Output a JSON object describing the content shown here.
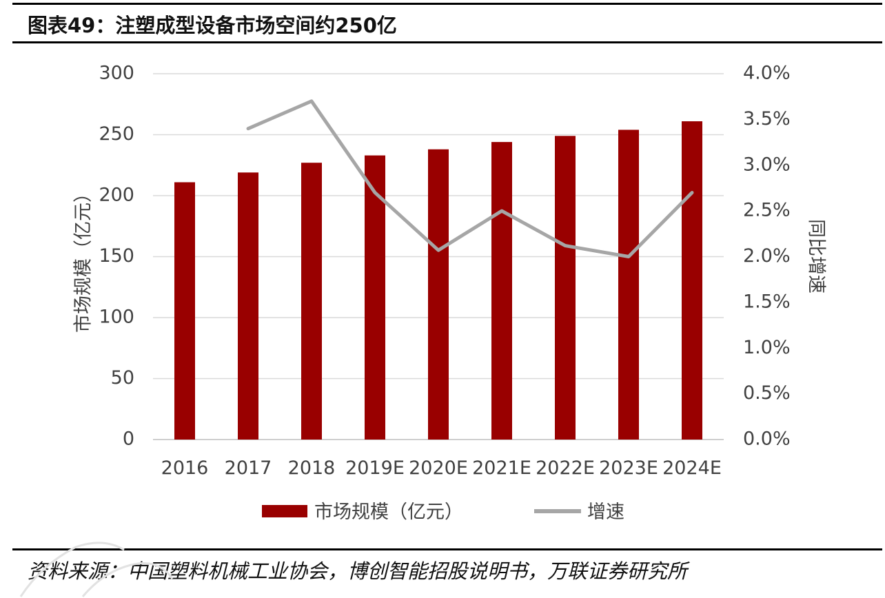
{
  "header": {
    "title": "图表49：注塑成型设备市场空间约250亿"
  },
  "footer": {
    "source": "资料来源：中国塑料机械工业协会，博创智能招股说明书，万联证券研究所"
  },
  "colors": {
    "bar": "#990000",
    "line": "#a6a6a6",
    "grid": "#d9d9d9"
  },
  "chart_data": {
    "type": "bar",
    "categories": [
      "2016",
      "2017",
      "2018",
      "2019E",
      "2020E",
      "2021E",
      "2022E",
      "2023E",
      "2024E"
    ],
    "series": [
      {
        "name": "市场规模（亿元）",
        "type": "bar",
        "axis": "left",
        "values": [
          211,
          219,
          227,
          233,
          238,
          244,
          249,
          254,
          261
        ]
      },
      {
        "name": "增速",
        "type": "line",
        "axis": "right",
        "values": [
          null,
          0.034,
          0.037,
          0.027,
          0.0207,
          0.025,
          0.0212,
          0.02,
          0.027
        ]
      }
    ],
    "ylabel": "市场规模（亿元）",
    "ylabel_right": "同比增速",
    "ylim": [
      0,
      300
    ],
    "yticks": [
      "0",
      "50",
      "100",
      "150",
      "200",
      "250",
      "300"
    ],
    "ylim_right": [
      0,
      0.04
    ],
    "yticks_right": [
      "0.0%",
      "0.5%",
      "1.0%",
      "1.5%",
      "2.0%",
      "2.5%",
      "3.0%",
      "3.5%",
      "4.0%"
    ],
    "grid": true,
    "legend_position": "bottom"
  }
}
